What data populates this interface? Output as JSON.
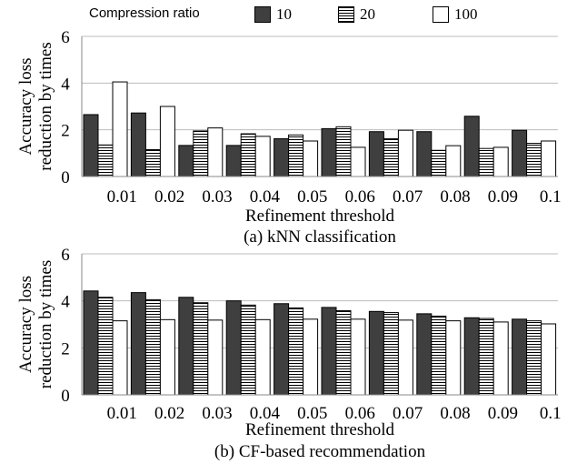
{
  "legend": {
    "title": "Compression ratio",
    "items": [
      {
        "label": "10",
        "fill": "solid",
        "color": "#3f3f3f"
      },
      {
        "label": "20",
        "fill": "horizontal-stripes",
        "color": "#000000"
      },
      {
        "label": "100",
        "fill": "white",
        "color": "#ffffff"
      }
    ]
  },
  "chart_data": [
    {
      "type": "bar",
      "categories": [
        "0.01",
        "0.02",
        "0.03",
        "0.04",
        "0.05",
        "0.06",
        "0.07",
        "0.08",
        "0.09",
        "0.1"
      ],
      "series": [
        {
          "name": "10",
          "values": [
            2.65,
            2.72,
            1.33,
            1.33,
            1.62,
            2.05,
            1.92,
            1.92,
            2.58,
            1.98
          ]
        },
        {
          "name": "20",
          "values": [
            1.35,
            1.15,
            1.95,
            1.83,
            1.78,
            2.13,
            1.62,
            1.12,
            1.2,
            1.42
          ]
        },
        {
          "name": "100",
          "values": [
            4.05,
            3.0,
            2.08,
            1.72,
            1.52,
            1.25,
            1.98,
            1.32,
            1.25,
            1.52
          ]
        }
      ],
      "xlabel": "Refinement threshold",
      "ylabel": "Accuracy loss reduction by times",
      "caption": "(a) kNN classification",
      "ylim": [
        0,
        6
      ],
      "yticks": [
        0,
        2,
        4,
        6
      ],
      "grid": true,
      "legend": "top"
    },
    {
      "type": "bar",
      "categories": [
        "0.01",
        "0.02",
        "0.03",
        "0.04",
        "0.05",
        "0.06",
        "0.07",
        "0.08",
        "0.09",
        "0.1"
      ],
      "series": [
        {
          "name": "10",
          "values": [
            4.42,
            4.35,
            4.15,
            4.0,
            3.88,
            3.72,
            3.55,
            3.45,
            3.28,
            3.22
          ]
        },
        {
          "name": "20",
          "values": [
            4.15,
            4.05,
            3.92,
            3.82,
            3.7,
            3.58,
            3.5,
            3.35,
            3.25,
            3.15
          ]
        },
        {
          "name": "100",
          "values": [
            3.15,
            3.2,
            3.18,
            3.2,
            3.22,
            3.22,
            3.18,
            3.15,
            3.1,
            3.02
          ]
        }
      ],
      "xlabel": "Refinement threshold",
      "ylabel": "Accuracy loss reduction by times",
      "caption": "(b) CF-based recommendation",
      "ylim": [
        0,
        6
      ],
      "yticks": [
        0,
        2,
        4,
        6
      ],
      "grid": true,
      "legend": "top"
    }
  ]
}
